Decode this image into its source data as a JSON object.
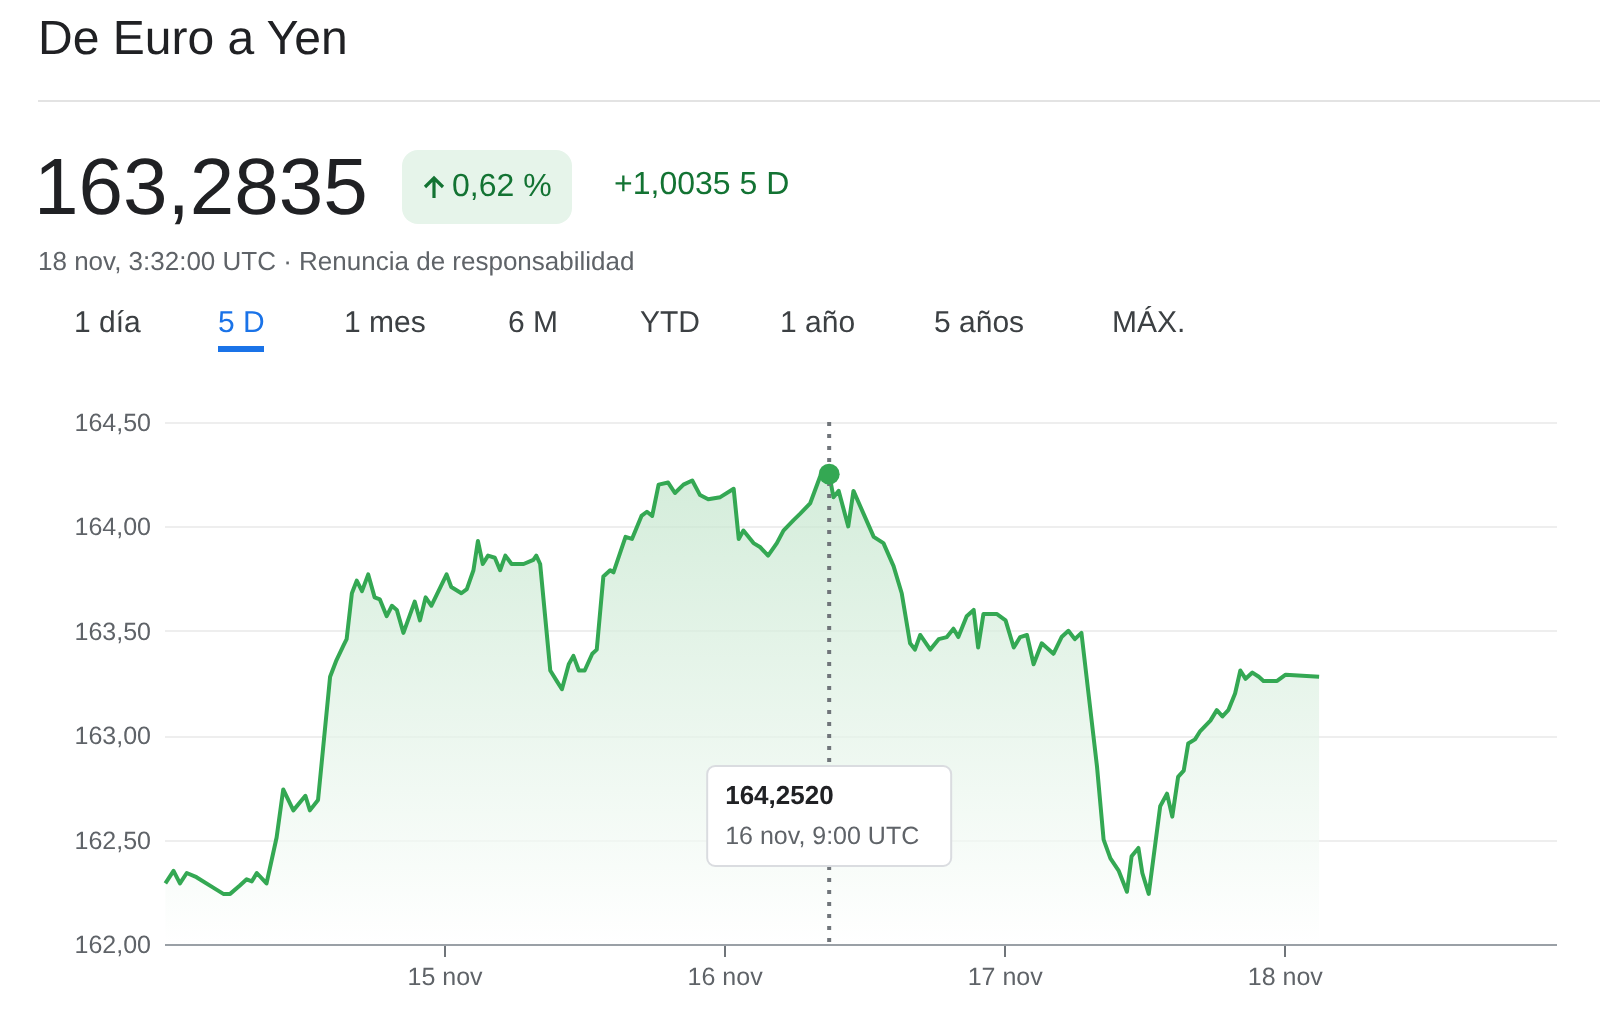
{
  "chart_data": {
    "type": "area",
    "title": "De Euro a Yen",
    "subtitle": "18 nov, 3:32:00 UTC · Renuncia de responsabilidad",
    "annotations": [
      "163,2835",
      "0,62 %",
      "+1,0035 5 D",
      "1 día",
      "5 D",
      "1 mes",
      "6 M",
      "YTD",
      "1 año",
      "5 años",
      "MÁX.",
      "164,2520",
      "16 nov, 9:00 UTC"
    ],
    "x": [
      "--11-14T00:07",
      "--11-14T00:49",
      "--11-14T01:22",
      "--11-14T01:57",
      "--11-14T02:47",
      "--11-14T04:13",
      "--11-14T05:05",
      "--11-14T05:40",
      "--11-14T06:30",
      "--11-14T07:05",
      "--11-14T07:32",
      "--11-14T07:57",
      "--11-14T08:47",
      "--11-14T09:39",
      "--11-14T10:13",
      "--11-14T11:05",
      "--11-14T12:07",
      "--11-14T12:30",
      "--11-14T13:12",
      "--11-14T14:14",
      "--11-14T14:47",
      "--11-14T15:23",
      "--11-14T15:39",
      "--11-14T16:06",
      "--11-14T16:31",
      "--11-14T16:58",
      "--11-14T17:30",
      "--11-14T18:03",
      "--11-14T18:30",
      "--11-14T19:05",
      "--11-14T19:32",
      "--11-14T19:57",
      "--11-14T20:31",
      "--11-14T21:29",
      "--11-14T21:56",
      "--11-14T22:25",
      "--11-14T22:55",
      "--11-15T00:13",
      "--11-15T00:37",
      "--11-15T01:29",
      "--11-15T01:57",
      "--11-15T02:31",
      "--11-15T02:54",
      "--11-15T03:19",
      "--11-15T03:46",
      "--11-15T04:21",
      "--11-15T04:48",
      "--11-15T05:15",
      "--11-15T05:47",
      "--11-15T06:49",
      "--11-15T07:39",
      "--11-15T07:54",
      "--11-15T08:14",
      "--11-15T09:06",
      "--11-15T09:39",
      "--11-15T10:06",
      "--11-15T10:41",
      "--11-15T11:05",
      "--11-15T11:33",
      "--11-15T12:03",
      "--11-15T12:42",
      "--11-15T13:05",
      "--11-15T13:39",
      "--11-15T14:14",
      "--11-15T14:31",
      "--11-15T15:33",
      "--11-15T16:06",
      "--11-15T16:55",
      "--11-15T17:23",
      "--11-15T17:50",
      "--11-15T18:23",
      "--11-15T19:12",
      "--11-15T19:47",
      "--11-15T20:31",
      "--11-15T21:16",
      "--11-15T21:56",
      "--11-15T22:38",
      "--11-15T23:40",
      "--11-16T00:49",
      "--11-16T01:15",
      "--11-16T01:39",
      "--11-16T02:31",
      "--11-16T03:06",
      "--11-16T03:46",
      "--11-16T04:31",
      "--11-16T05:05",
      "--11-16T05:57",
      "--11-16T06:30",
      "--11-16T07:22",
      "--11-16T08:14",
      "--11-16T09:00",
      "--11-16T09:22",
      "--11-16T09:49",
      "--11-16T10:38",
      "--11-16T11:05",
      "--11-16T11:57",
      "--11-16T12:49",
      "--11-16T13:39",
      "--11-16T14:31",
      "--11-16T15:13",
      "--11-16T15:56",
      "--11-16T16:21",
      "--11-16T16:48",
      "--11-16T17:40",
      "--11-16T18:23",
      "--11-16T19:05",
      "--11-16T19:39",
      "--11-16T20:04",
      "--11-16T20:47",
      "--11-16T21:23",
      "--11-16T21:46",
      "--11-16T22:13",
      "--11-16T23:23",
      "--11-17T00:07",
      "--11-17T00:49",
      "--11-17T01:22",
      "--11-17T01:57",
      "--11-17T02:31",
      "--11-17T03:13",
      "--11-17T04:13",
      "--11-17T04:55",
      "--11-17T05:30",
      "--11-17T06:03",
      "--11-17T06:37",
      "--11-17T07:57",
      "--11-17T08:31",
      "--11-17T09:06",
      "--11-17T09:49",
      "--11-17T10:31",
      "--11-17T10:55",
      "--11-17T11:30",
      "--11-17T11:50",
      "--11-17T12:23",
      "--11-17T13:22",
      "--11-17T13:57",
      "--11-17T14:24",
      "--11-17T14:54",
      "--11-17T15:23",
      "--11-17T15:46",
      "--11-17T16:21",
      "--11-17T16:48",
      "--11-17T17:40",
      "--11-17T18:13",
      "--11-17T18:42",
      "--11-17T19:12",
      "--11-17T19:47",
      "--11-17T20:14",
      "--11-17T20:41",
      "--11-17T21:16",
      "--11-17T21:49",
      "--11-17T22:13",
      "--11-17T23:23",
      "--11-18T00:07",
      "--11-18T02:59"
    ],
    "series": [
      {
        "color": "#34a853",
        "values": [
          162.29,
          162.35,
          162.29,
          162.34,
          162.32,
          162.27,
          162.24,
          162.24,
          162.28,
          162.31,
          162.3,
          162.34,
          162.29,
          162.51,
          162.74,
          162.64,
          162.71,
          162.64,
          162.69,
          163.28,
          163.36,
          163.43,
          163.46,
          163.68,
          163.74,
          163.69,
          163.77,
          163.66,
          163.65,
          163.57,
          163.62,
          163.6,
          163.49,
          163.64,
          163.55,
          163.66,
          163.62,
          163.77,
          163.71,
          163.68,
          163.7,
          163.79,
          163.93,
          163.82,
          163.86,
          163.85,
          163.79,
          163.86,
          163.82,
          163.82,
          163.84,
          163.86,
          163.82,
          163.31,
          163.26,
          163.22,
          163.34,
          163.38,
          163.31,
          163.31,
          163.39,
          163.41,
          163.76,
          163.79,
          163.78,
          163.95,
          163.94,
          164.05,
          164.07,
          164.05,
          164.2,
          164.21,
          164.16,
          164.2,
          164.22,
          164.15,
          164.13,
          164.14,
          164.18,
          163.94,
          163.98,
          163.92,
          163.9,
          163.86,
          163.92,
          163.98,
          164.03,
          164.06,
          164.11,
          164.24,
          164.25,
          164.14,
          164.17,
          164.0,
          164.17,
          164.06,
          163.95,
          163.92,
          163.81,
          163.68,
          163.44,
          163.41,
          163.48,
          163.41,
          163.46,
          163.47,
          163.51,
          163.47,
          163.57,
          163.6,
          163.42,
          163.58,
          163.58,
          163.55,
          163.42,
          163.47,
          163.48,
          163.34,
          163.44,
          163.39,
          163.47,
          163.5,
          163.46,
          163.49,
          162.85,
          162.5,
          162.41,
          162.35,
          162.25,
          162.42,
          162.46,
          162.34,
          162.24,
          162.66,
          162.72,
          162.61,
          162.8,
          162.83,
          162.96,
          162.98,
          163.02,
          163.07,
          163.12,
          163.09,
          163.12,
          163.2,
          163.31,
          163.27,
          163.3,
          163.28,
          163.26,
          163.26,
          163.29,
          163.28
        ]
      },
      {
        "type": "scatter",
        "color": "#34a853",
        "x": [
          "--11-16T09:00"
        ],
        "values": [
          164.25
        ]
      }
    ],
    "xlim": [
      "--11-14T00:00",
      "--11-18T23:17"
    ],
    "xticks": [
      {
        "value": "--11-15T00:00",
        "label": "15 nov"
      },
      {
        "value": "--11-16T00:00",
        "label": "16 nov"
      },
      {
        "value": "--11-17T00:00",
        "label": "17 nov"
      },
      {
        "value": "--11-18T00:00",
        "label": "18 nov"
      }
    ],
    "ylim": [
      162,
      164.5
    ],
    "yticks": [
      {
        "value": 162,
        "label": "162,00"
      },
      {
        "value": 162.5,
        "label": "162,50"
      },
      {
        "value": 163,
        "label": "163,00"
      },
      {
        "value": 163.5,
        "label": "163,50"
      },
      {
        "value": 164,
        "label": "164,00"
      },
      {
        "value": 164.5,
        "label": "164,50"
      }
    ],
    "grid": "y",
    "ref_lines": [
      {
        "axis": "x",
        "value": "--11-16T09:00",
        "color": "#70757a",
        "line_style": "dotted"
      }
    ]
  }
}
